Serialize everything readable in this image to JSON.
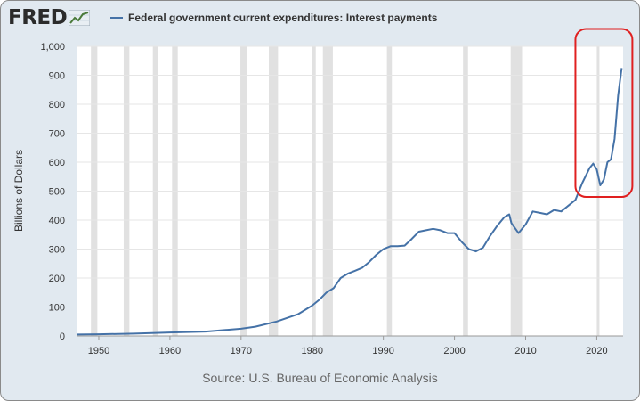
{
  "header": {
    "logo_text": "FRED",
    "logo_icon": "line-chart-icon"
  },
  "colors": {
    "frame_bg": "#e1e9f0",
    "plot_bg": "#ffffff",
    "series": "#4572a7",
    "recession": "#e1e1e1",
    "highlight": "#e02020"
  },
  "annotation": {
    "type": "rounded-rectangle",
    "color": "#e02020",
    "encloses_x": [
      2017,
      2023.5
    ],
    "encloses_y": [
      480,
      1060
    ]
  },
  "source": "Source: U.S. Bureau of Economic Analysis",
  "chart_data": {
    "type": "line",
    "title": "",
    "xlabel": "",
    "ylabel": "Billions of Dollars",
    "xlim": [
      1947,
      2023.7
    ],
    "ylim": [
      0,
      1000
    ],
    "xticks": [
      1950,
      1960,
      1970,
      1980,
      1990,
      2000,
      2010,
      2020
    ],
    "yticks": [
      "0",
      "100",
      "200",
      "300",
      "400",
      "500",
      "600",
      "700",
      "800",
      "900",
      "1,000"
    ],
    "grid": "horizontal",
    "legend": "top-left",
    "recessions": [
      [
        1948.9,
        1949.8
      ],
      [
        1953.5,
        1954.3
      ],
      [
        1957.6,
        1958.3
      ],
      [
        1960.3,
        1961.1
      ],
      [
        1969.9,
        1970.9
      ],
      [
        1973.9,
        1975.2
      ],
      [
        1980.0,
        1980.5
      ],
      [
        1981.5,
        1982.9
      ],
      [
        1990.5,
        1991.2
      ],
      [
        2001.2,
        2001.9
      ],
      [
        2007.9,
        2009.5
      ],
      [
        2020.0,
        2020.3
      ]
    ],
    "series": [
      {
        "name": "Federal government current expenditures: Interest payments",
        "x": [
          1947,
          1950,
          1955,
          1960,
          1965,
          1970,
          1972,
          1975,
          1978,
          1980,
          1981,
          1982,
          1983,
          1984,
          1985,
          1986,
          1987,
          1988,
          1989,
          1990,
          1991,
          1992,
          1993,
          1994,
          1995,
          1996,
          1997,
          1998,
          1999,
          2000,
          2001,
          2002,
          2003,
          2004,
          2005,
          2006,
          2007,
          2007.7,
          2008,
          2009,
          2010,
          2011,
          2012,
          2013,
          2014,
          2015,
          2016,
          2017,
          2018,
          2019,
          2019.5,
          2020,
          2020.5,
          2021,
          2021.5,
          2022,
          2022.5,
          2023,
          2023.5
        ],
        "values": [
          5,
          6,
          8,
          12,
          15,
          25,
          32,
          50,
          75,
          105,
          125,
          150,
          165,
          200,
          215,
          225,
          235,
          255,
          280,
          300,
          310,
          310,
          312,
          335,
          360,
          365,
          370,
          365,
          355,
          355,
          325,
          300,
          292,
          305,
          345,
          380,
          410,
          420,
          390,
          355,
          385,
          430,
          425,
          420,
          435,
          430,
          450,
          470,
          530,
          580,
          595,
          575,
          520,
          540,
          600,
          610,
          680,
          830,
          925
        ]
      }
    ]
  }
}
